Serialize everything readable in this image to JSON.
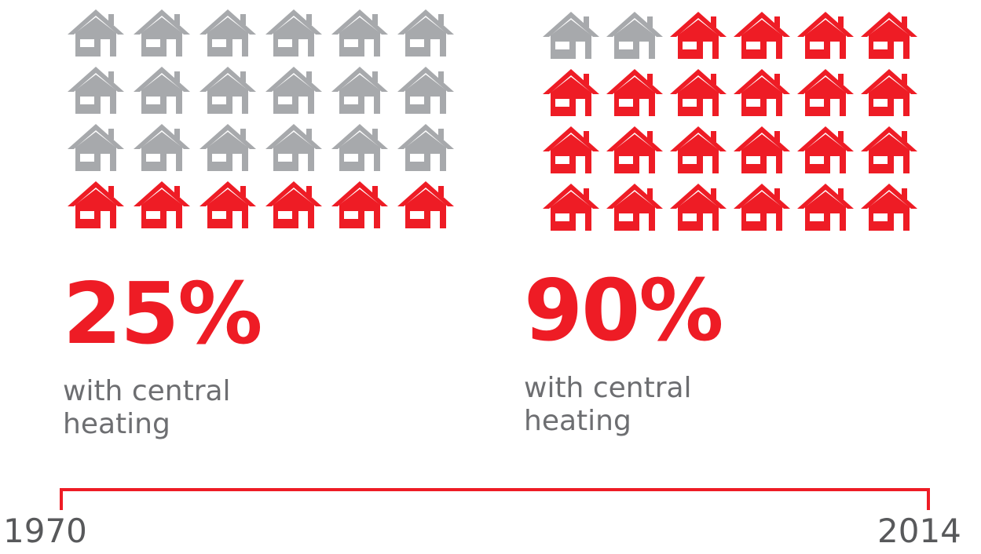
{
  "colors": {
    "accent": "#ee1c25",
    "inactive": "#a7a9ac",
    "text": "#6d6e71",
    "year_text": "#58595b"
  },
  "chart_data": {
    "type": "pictogram",
    "icon": "house-icon",
    "timeline": {
      "start": "1970",
      "end": "2014"
    },
    "panels": [
      {
        "year": "1970",
        "value_label": "25%",
        "value": 25,
        "caption_line1": "with central",
        "caption_line2": "heating",
        "rows": 4,
        "cols": 6,
        "filled_count": 6
      },
      {
        "year": "2014",
        "value_label": "90%",
        "value": 90,
        "caption_line1": "with central",
        "caption_line2": "heating",
        "rows": 4,
        "cols": 6,
        "filled_count": 22
      }
    ]
  }
}
